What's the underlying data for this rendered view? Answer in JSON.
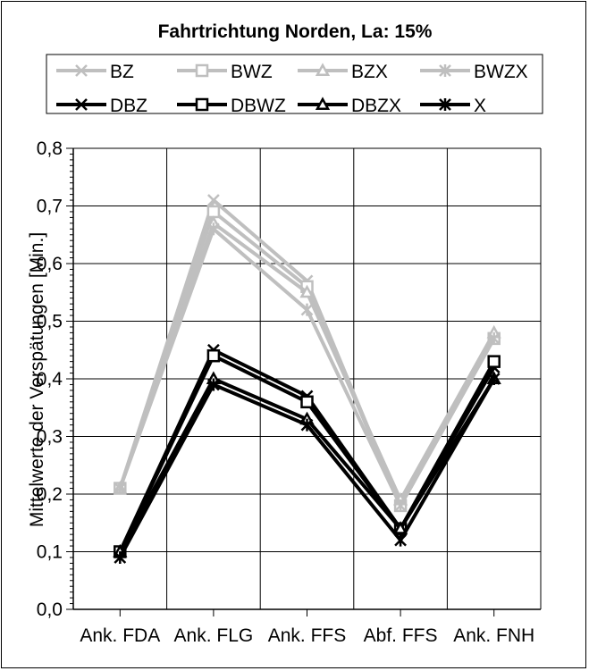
{
  "chart_data": {
    "type": "line",
    "title": "Fahrtrichtung Norden, La: 15%",
    "ylabel": "Mittelwerte der Verspätungen [Min.]",
    "xlabel": "",
    "categories": [
      "Ank. FDA",
      "Ank. FLG",
      "Ank. FFS",
      "Abf. FFS",
      "Ank. FNH"
    ],
    "ylim": [
      0,
      0.8
    ],
    "yticks": [
      "0,0",
      "0,1",
      "0,2",
      "0,3",
      "0,4",
      "0,5",
      "0,6",
      "0,7",
      "0,8"
    ],
    "grid": true,
    "legend_position": "top",
    "series": [
      {
        "name": "BZ",
        "color": "#bfbfbf",
        "marker": "x",
        "values": [
          0.21,
          0.71,
          0.57,
          0.18,
          0.47
        ]
      },
      {
        "name": "BWZ",
        "color": "#bfbfbf",
        "marker": "square",
        "values": [
          0.21,
          0.69,
          0.56,
          0.18,
          0.47
        ]
      },
      {
        "name": "BZX",
        "color": "#bfbfbf",
        "marker": "triangle",
        "values": [
          0.21,
          0.67,
          0.55,
          0.19,
          0.48
        ]
      },
      {
        "name": "BWZX",
        "color": "#bfbfbf",
        "marker": "asterisk",
        "values": [
          0.21,
          0.66,
          0.52,
          0.18,
          0.47
        ]
      },
      {
        "name": "DBZ",
        "color": "#000000",
        "marker": "x",
        "values": [
          0.1,
          0.45,
          0.37,
          0.14,
          0.42
        ]
      },
      {
        "name": "DBWZ",
        "color": "#000000",
        "marker": "square",
        "values": [
          0.1,
          0.44,
          0.36,
          0.14,
          0.43
        ]
      },
      {
        "name": "DBZX",
        "color": "#000000",
        "marker": "triangle",
        "values": [
          0.1,
          0.4,
          0.33,
          0.14,
          0.4
        ]
      },
      {
        "name": "X",
        "color": "#000000",
        "marker": "asterisk",
        "values": [
          0.09,
          0.39,
          0.32,
          0.12,
          0.4
        ]
      }
    ]
  }
}
